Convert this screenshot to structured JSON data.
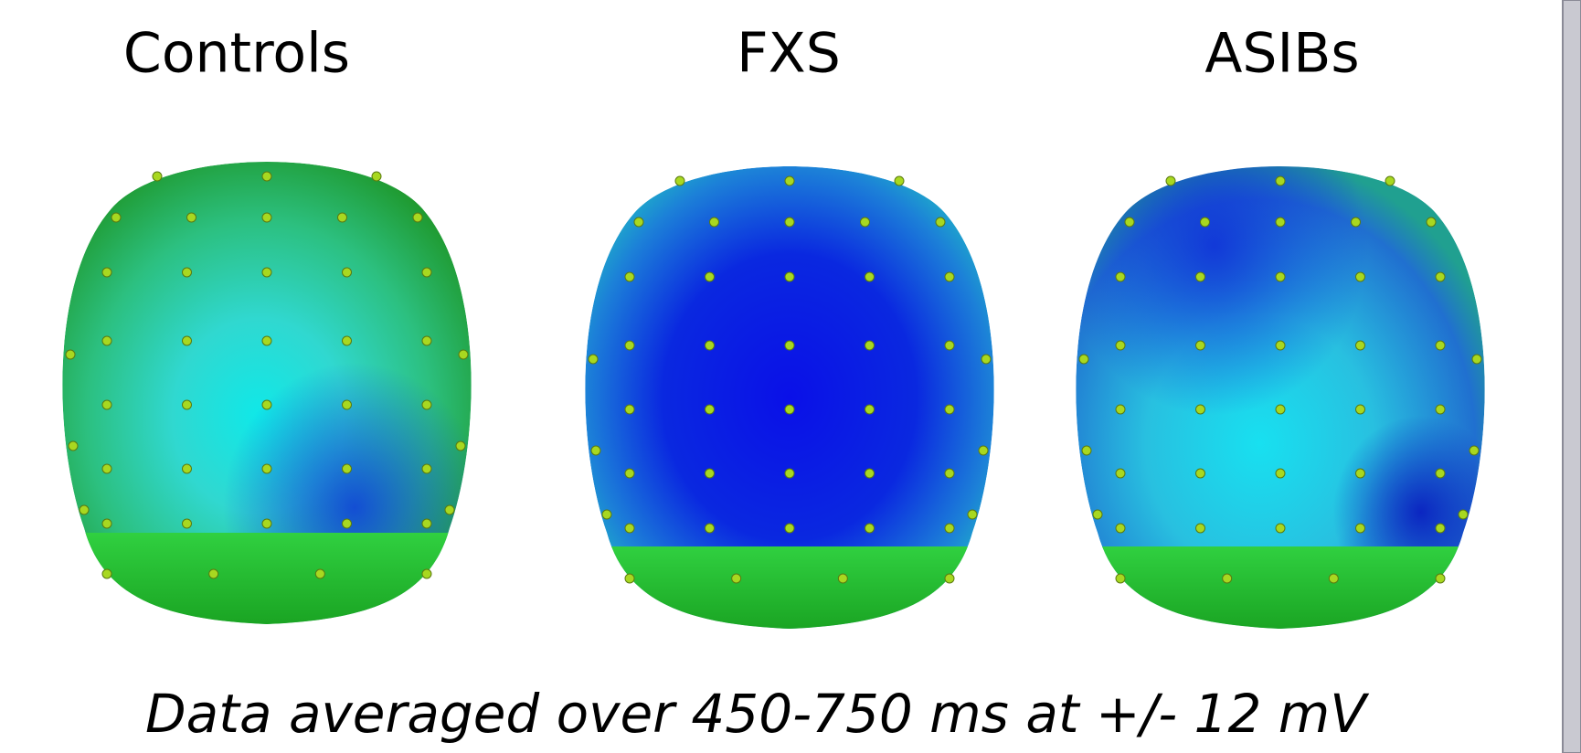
{
  "panels": [
    {
      "title": "Controls"
    },
    {
      "title": "FXS"
    },
    {
      "title": "ASIBs"
    }
  ],
  "caption": "Data averaged over 450-750 ms at +/- 12 mV"
}
